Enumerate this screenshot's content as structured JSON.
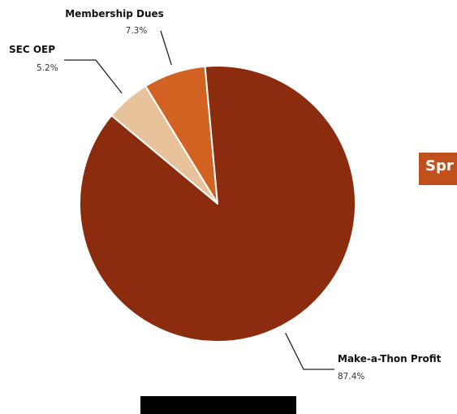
{
  "chart_data": {
    "type": "pie",
    "title": "",
    "slices": [
      {
        "label": "Membership Dues",
        "value": 7.3,
        "display": "7.3%",
        "color": "#d16222"
      },
      {
        "label": "SEC OEP",
        "value": 5.2,
        "display": "5.2%",
        "color": "#e8c29b"
      },
      {
        "label": "Make-a-Thon Profit",
        "value": 87.4,
        "display": "87.4%",
        "color": "#8b2c0e"
      }
    ],
    "slice_border_color": "#ffffff",
    "leader_line_color": "#222222",
    "legend": "none"
  },
  "side_tab": {
    "text": "Spr",
    "color": "#c0501c"
  }
}
